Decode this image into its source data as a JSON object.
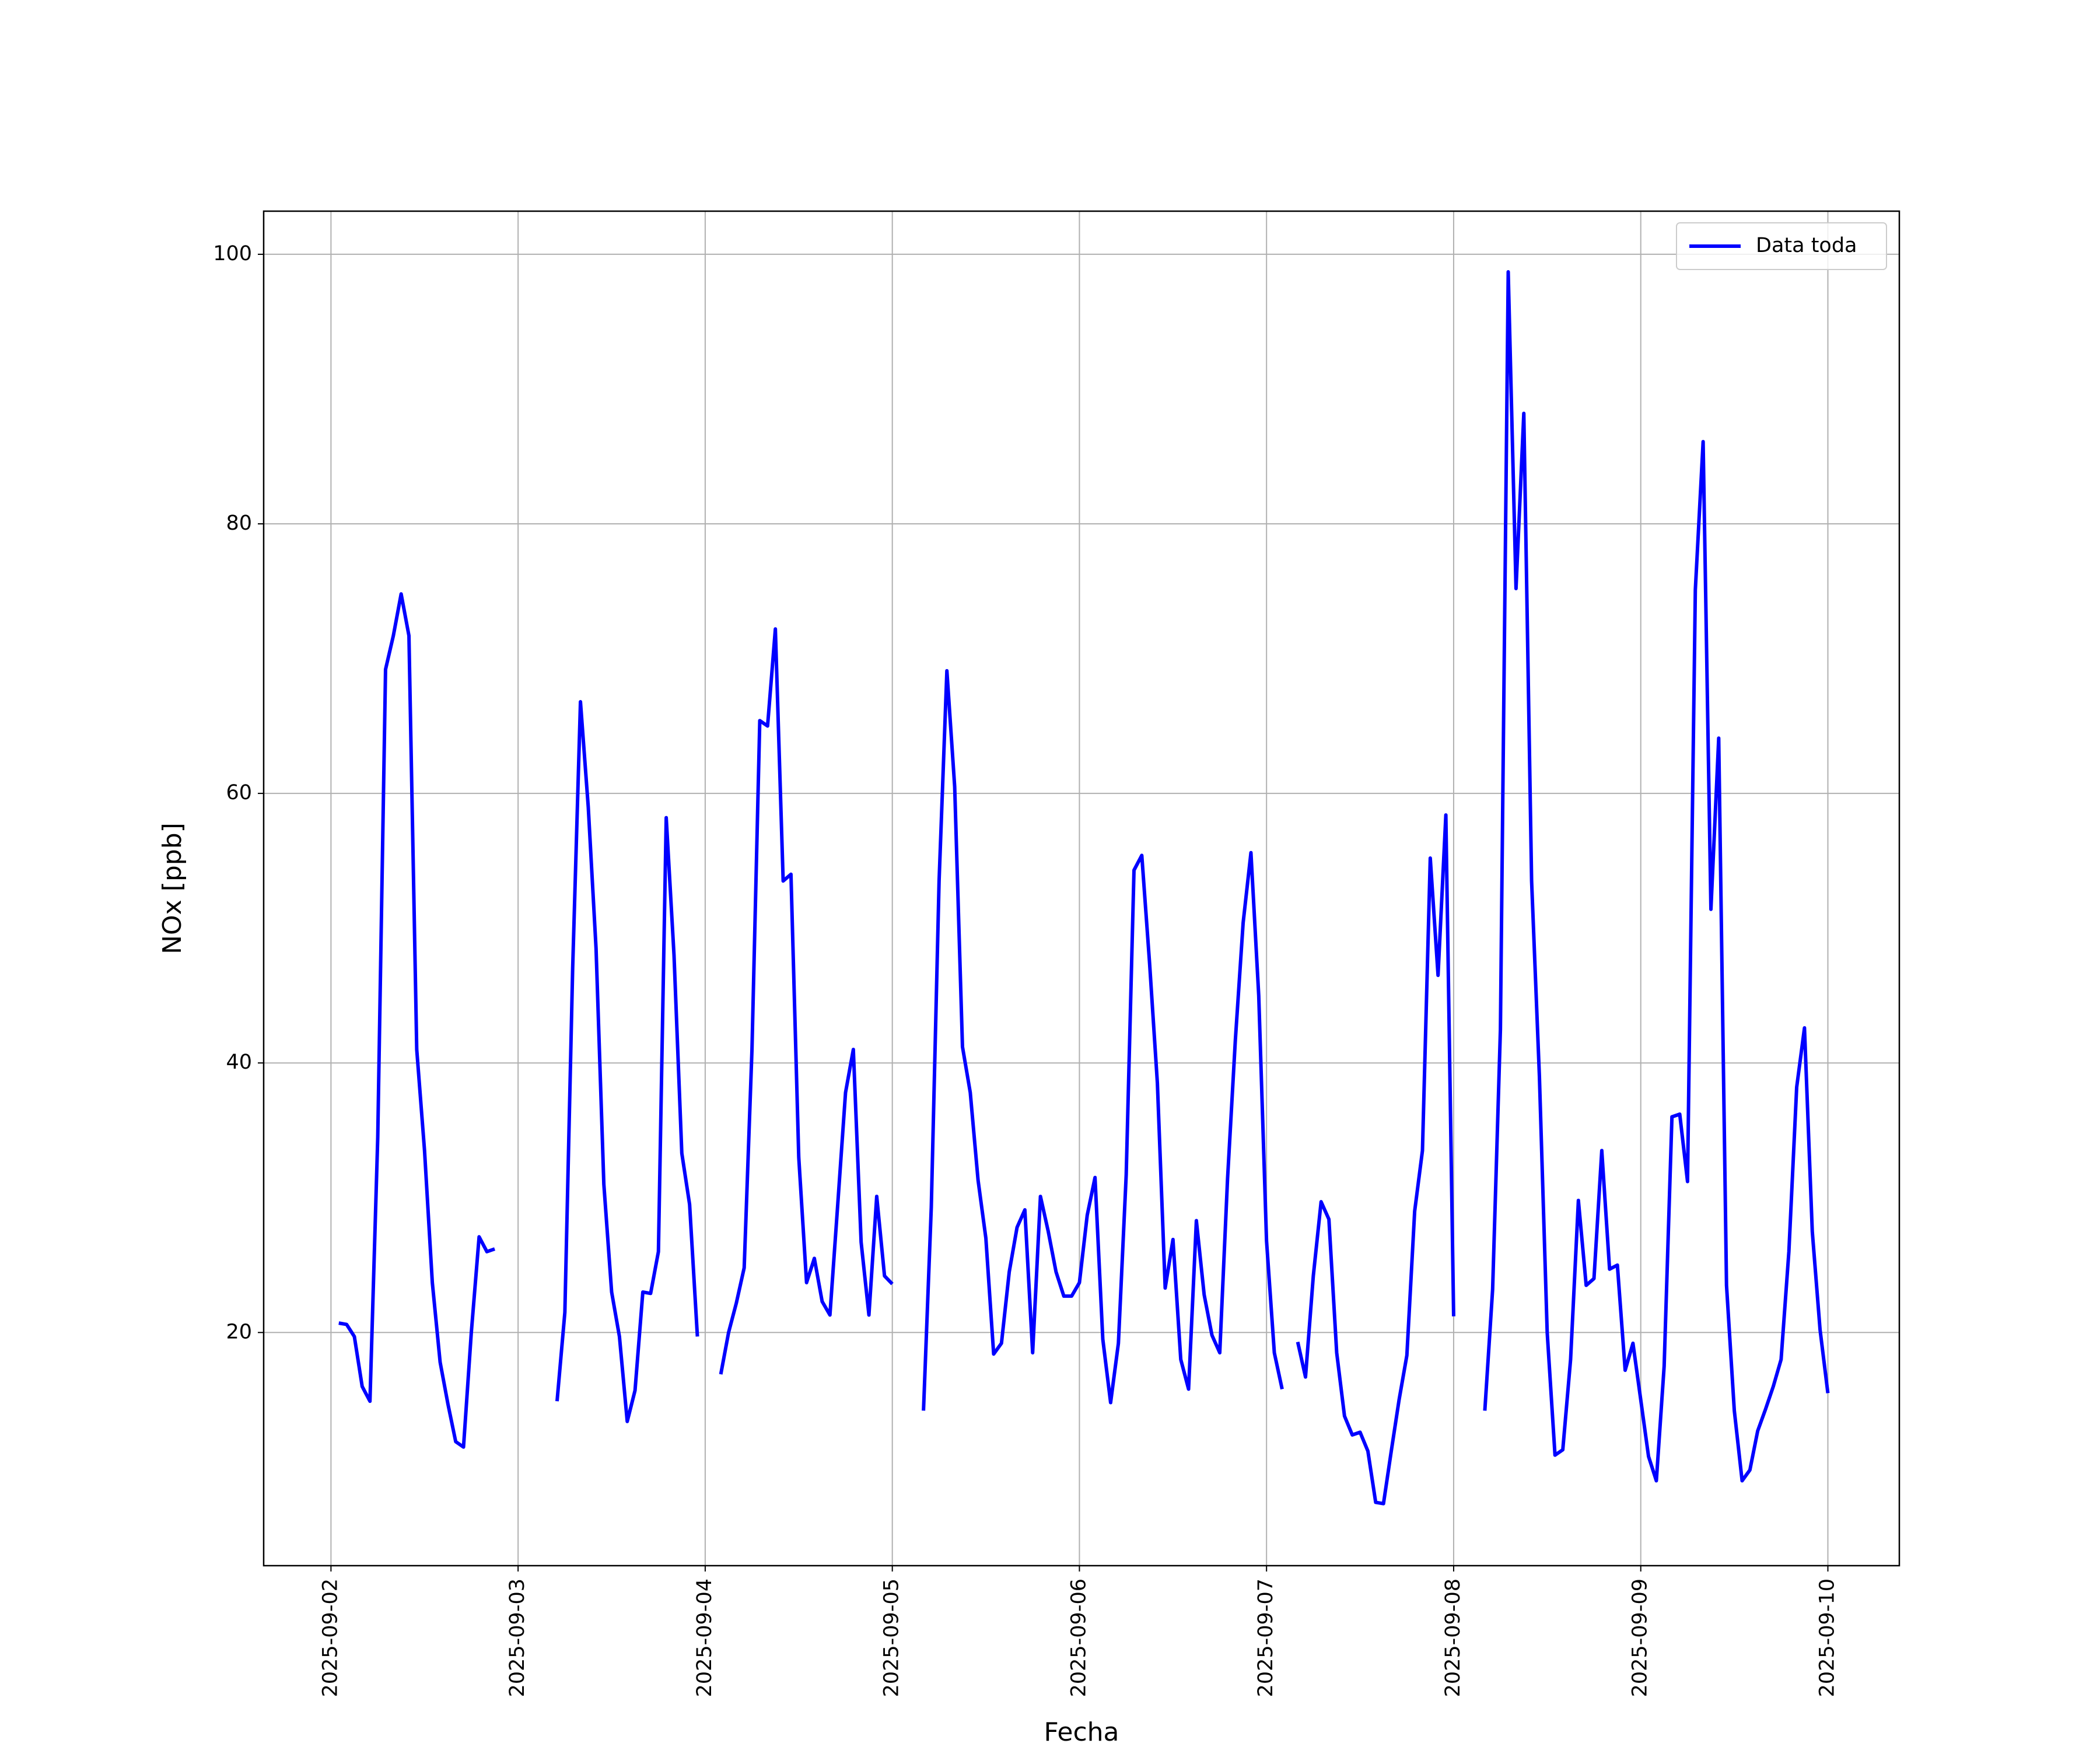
{
  "chart_data": {
    "type": "line",
    "x_label": "Fecha",
    "y_label": "NOx [ppb]",
    "xlim": [
      "2025-09-01 15:22",
      "2025-09-10 09:10"
    ],
    "ylim": [
      2.7,
      103.2
    ],
    "xticks": [
      "2025-09-02",
      "2025-09-03",
      "2025-09-04",
      "2025-09-05",
      "2025-09-06",
      "2025-09-07",
      "2025-09-08",
      "2025-09-09",
      "2025-09-10"
    ],
    "yticks": [
      20,
      40,
      60,
      80,
      100
    ],
    "grid": true,
    "legend": "upper right",
    "x": [
      "2025-09-02 01:00",
      "2025-09-02 02:00",
      "2025-09-02 03:00",
      "2025-09-02 04:00",
      "2025-09-02 05:00",
      "2025-09-02 06:00",
      "2025-09-02 07:00",
      "2025-09-02 08:00",
      "2025-09-02 09:00",
      "2025-09-02 10:00",
      "2025-09-02 11:00",
      "2025-09-02 12:00",
      "2025-09-02 13:00",
      "2025-09-02 14:00",
      "2025-09-02 15:00",
      "2025-09-02 16:00",
      "2025-09-02 17:00",
      "2025-09-02 18:00",
      "2025-09-02 19:00",
      "2025-09-02 20:00",
      "2025-09-02 21:00",
      "2025-09-03 00:00",
      "2025-09-03 05:00",
      "2025-09-03 06:00",
      "2025-09-03 07:00",
      "2025-09-03 08:00",
      "2025-09-03 09:00",
      "2025-09-03 10:00",
      "2025-09-03 11:00",
      "2025-09-03 12:00",
      "2025-09-03 13:00",
      "2025-09-03 14:00",
      "2025-09-03 15:00",
      "2025-09-03 16:00",
      "2025-09-03 17:00",
      "2025-09-03 18:00",
      "2025-09-03 19:00",
      "2025-09-03 20:00",
      "2025-09-03 21:00",
      "2025-09-03 22:00",
      "2025-09-03 23:00",
      "2025-09-04 01:00",
      "2025-09-04 02:00",
      "2025-09-04 03:00",
      "2025-09-04 04:00",
      "2025-09-04 05:00",
      "2025-09-04 06:00",
      "2025-09-04 07:00",
      "2025-09-04 08:00",
      "2025-09-04 09:00",
      "2025-09-04 10:00",
      "2025-09-04 11:00",
      "2025-09-04 12:00",
      "2025-09-04 13:00",
      "2025-09-04 14:00",
      "2025-09-04 15:00",
      "2025-09-04 16:00",
      "2025-09-04 17:00",
      "2025-09-04 18:00",
      "2025-09-04 19:00",
      "2025-09-04 20:00",
      "2025-09-04 21:00",
      "2025-09-04 22:00",
      "2025-09-04 23:00",
      "2025-09-05 00:00",
      "2025-09-05 02:00",
      "2025-09-05 04:00",
      "2025-09-05 05:00",
      "2025-09-05 06:00",
      "2025-09-05 07:00",
      "2025-09-05 08:00",
      "2025-09-05 09:00",
      "2025-09-05 10:00",
      "2025-09-05 11:00",
      "2025-09-05 12:00",
      "2025-09-05 13:00",
      "2025-09-05 14:00",
      "2025-09-05 15:00",
      "2025-09-05 16:00",
      "2025-09-05 17:00",
      "2025-09-05 18:00",
      "2025-09-05 19:00",
      "2025-09-05 20:00",
      "2025-09-05 21:00",
      "2025-09-05 22:00",
      "2025-09-05 23:00",
      "2025-09-06 00:00",
      "2025-09-06 01:00",
      "2025-09-06 02:00",
      "2025-09-06 03:00",
      "2025-09-06 04:00",
      "2025-09-06 05:00",
      "2025-09-06 06:00",
      "2025-09-06 07:00",
      "2025-09-06 08:00",
      "2025-09-06 09:00",
      "2025-09-06 10:00",
      "2025-09-06 11:00",
      "2025-09-06 12:00",
      "2025-09-06 13:00",
      "2025-09-06 14:00",
      "2025-09-06 15:00",
      "2025-09-06 16:00",
      "2025-09-06 17:00",
      "2025-09-06 18:00",
      "2025-09-06 19:00",
      "2025-09-06 20:00",
      "2025-09-06 21:00",
      "2025-09-06 22:00",
      "2025-09-06 23:00",
      "2025-09-07 00:00",
      "2025-09-07 01:00",
      "2025-09-07 02:00",
      "2025-09-07 03:00",
      "2025-09-07 04:00",
      "2025-09-07 05:00",
      "2025-09-07 06:00",
      "2025-09-07 07:00",
      "2025-09-07 08:00",
      "2025-09-07 09:00",
      "2025-09-07 10:00",
      "2025-09-07 11:00",
      "2025-09-07 12:00",
      "2025-09-07 13:00",
      "2025-09-07 14:00",
      "2025-09-07 15:00",
      "2025-09-07 16:00",
      "2025-09-07 17:00",
      "2025-09-07 18:00",
      "2025-09-07 19:00",
      "2025-09-07 20:00",
      "2025-09-07 21:00",
      "2025-09-07 22:00",
      "2025-09-07 23:00",
      "2025-09-08 00:00",
      "2025-09-08 02:00",
      "2025-09-08 04:00",
      "2025-09-08 05:00",
      "2025-09-08 06:00",
      "2025-09-08 07:00",
      "2025-09-08 08:00",
      "2025-09-08 09:00",
      "2025-09-08 10:00",
      "2025-09-08 11:00",
      "2025-09-08 12:00",
      "2025-09-08 13:00",
      "2025-09-08 14:00",
      "2025-09-08 15:00",
      "2025-09-08 16:00",
      "2025-09-08 17:00",
      "2025-09-08 18:00",
      "2025-09-08 19:00",
      "2025-09-08 20:00",
      "2025-09-08 21:00",
      "2025-09-08 22:00",
      "2025-09-08 23:00",
      "2025-09-09 00:00",
      "2025-09-09 01:00",
      "2025-09-09 02:00",
      "2025-09-09 03:00",
      "2025-09-09 04:00",
      "2025-09-09 05:00",
      "2025-09-09 06:00",
      "2025-09-09 07:00",
      "2025-09-09 08:00",
      "2025-09-09 09:00",
      "2025-09-09 10:00",
      "2025-09-09 11:00",
      "2025-09-09 12:00",
      "2025-09-09 13:00",
      "2025-09-09 14:00",
      "2025-09-09 15:00",
      "2025-09-09 16:00",
      "2025-09-09 17:00",
      "2025-09-09 18:00",
      "2025-09-09 19:00",
      "2025-09-09 20:00",
      "2025-09-09 21:00",
      "2025-09-09 22:00",
      "2025-09-09 23:00",
      "2025-09-10 00:00"
    ],
    "series": [
      {
        "name": "Data toda",
        "color": "#0000ff",
        "values": [
          20.7,
          20.6,
          19.7,
          16.0,
          14.9,
          34.5,
          69.2,
          71.7,
          74.8,
          71.7,
          41.0,
          33.5,
          23.7,
          17.8,
          14.7,
          11.9,
          11.5,
          20.0,
          27.1,
          26.0,
          26.2,
          null,
          14.9,
          21.5,
          47.0,
          66.8,
          59.0,
          48.5,
          31.0,
          23.0,
          19.7,
          13.4,
          15.7,
          23.0,
          22.9,
          26.0,
          58.2,
          48.0,
          33.3,
          29.5,
          19.7,
          null,
          16.9,
          20.0,
          22.2,
          24.8,
          41.0,
          65.4,
          65.0,
          72.2,
          53.5,
          54.0,
          33.0,
          23.7,
          25.5,
          22.3,
          21.3,
          29.5,
          37.8,
          41.0,
          26.7,
          21.3,
          30.1,
          24.2,
          23.6,
          null,
          14.2,
          29.3,
          53.5,
          69.1,
          60.5,
          41.2,
          37.8,
          31.3,
          27.0,
          18.4,
          19.2,
          24.5,
          27.8,
          29.1,
          18.5,
          30.1,
          27.5,
          24.5,
          22.7,
          22.7,
          23.7,
          28.7,
          31.5,
          19.5,
          14.8,
          19.2,
          31.7,
          54.3,
          55.4,
          47.4,
          38.5,
          23.3,
          26.9,
          18.0,
          15.8,
          28.3,
          22.8,
          19.8,
          18.5,
          31.4,
          41.7,
          50.4,
          55.6,
          45.0,
          26.8,
          18.5,
          15.8,
          null,
          19.3,
          16.7,
          24.2,
          29.7,
          28.4,
          18.5,
          13.8,
          12.4,
          12.6,
          11.2,
          7.4,
          7.3,
          11.2,
          15.0,
          18.3,
          29.0,
          33.5,
          55.2,
          46.5,
          58.4,
          21.2,
          null,
          14.2,
          23.2,
          42.5,
          98.7,
          75.2,
          88.2,
          53.5,
          39.0,
          20.0,
          10.9,
          11.3,
          18.0,
          29.8,
          23.5,
          24.0,
          33.5,
          24.7,
          25.0,
          17.2,
          19.2,
          15.0,
          10.8,
          9.0,
          17.5,
          36.0,
          36.2,
          31.2,
          75.1,
          86.1,
          51.4,
          64.1,
          23.5,
          14.2,
          9.0,
          9.8,
          12.7,
          14.3,
          16.0,
          18.0,
          26.0,
          38.2,
          42.6,
          27.5,
          20.2,
          15.5
        ]
      }
    ]
  }
}
